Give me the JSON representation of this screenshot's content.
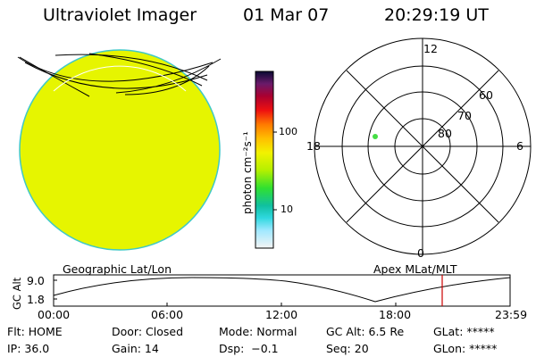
{
  "header": {
    "instrument": "Ultraviolet Imager",
    "date": "01 Mar 07",
    "time": "20:29:19 UT"
  },
  "colorbar": {
    "unit_label": "photon cm⁻²s⁻¹",
    "tick_100": "100",
    "tick_10": "10"
  },
  "polar_plot": {
    "mlt_labels": {
      "top": "12",
      "left": "18",
      "right": "6",
      "bottom": "0"
    },
    "lat_labels": [
      "60",
      "70",
      "80"
    ]
  },
  "altitude_panel": {
    "left_title": "Geographic Lat/Lon",
    "right_title": "Apex MLat/MLT",
    "y_label": "GC Alt",
    "y_max": "9.0",
    "y_min": "1.8",
    "x_ticks": [
      "00:00",
      "06:00",
      "12:00",
      "18:00",
      "23:59"
    ]
  },
  "status": {
    "filter": "Flt: HOME",
    "ip": "IP: 36.0",
    "door": "Door: Closed",
    "gain": "Gain: 14",
    "mode": "Mode: Normal",
    "dsp": "Dsp:  −0.1",
    "gc_alt": "GC Alt: 6.5 Re",
    "seq": "Seq: 20",
    "glat": "GLat: *****",
    "glon": "GLon: *****"
  },
  "colors": {
    "earth_fill": "#e6f500",
    "limb": "#3fc8c8",
    "marker": "#44dd44",
    "time_cursor": "#cc0000"
  }
}
